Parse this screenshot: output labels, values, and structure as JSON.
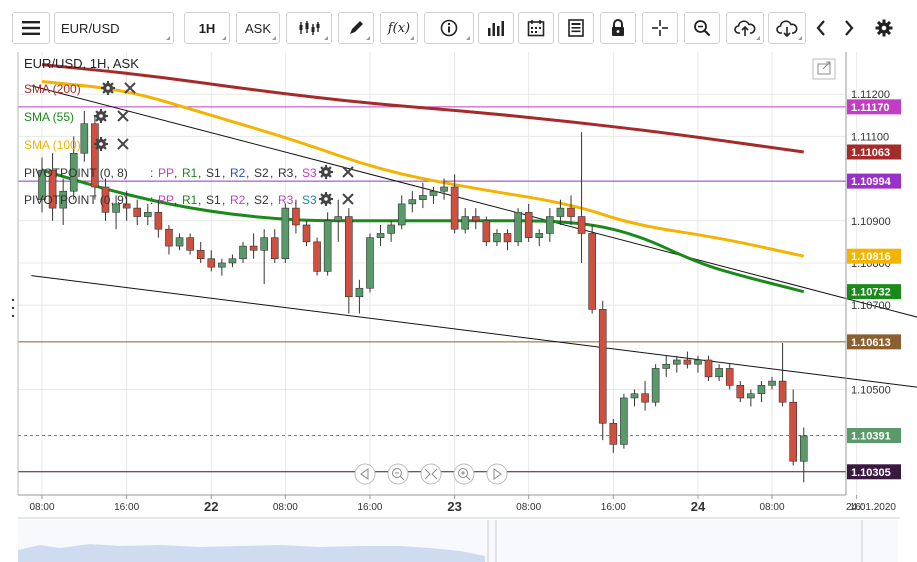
{
  "toolbar": {
    "symbol": "EUR/USD",
    "timeframe": "1H",
    "price_type": "ASK",
    "fx_label": "f(x)",
    "icons": [
      "menu-icon",
      "candles-icon",
      "pencil-icon",
      "function-icon",
      "info-icon",
      "bar-chart-icon",
      "calendar-icon",
      "sheet-icon",
      "lock-icon",
      "crosshair-icon",
      "zoom-icon",
      "cloud-upload-icon",
      "cloud-download-icon",
      "chevron-left-icon",
      "chevron-right-icon",
      "gear-icon"
    ]
  },
  "chart_title": "EUR/USD, 1H, ASK",
  "indicators": [
    {
      "label": "SMA (200)",
      "color": "#a52a2a"
    },
    {
      "label": "SMA (55)",
      "color": "#1a8a1a"
    },
    {
      "label": "SMA (100)",
      "color": "#f5b301"
    }
  ],
  "pivots": [
    {
      "label": "PIVOTPOINT (0, 8)",
      "items": [
        {
          "t": "PP",
          "c": "#c43cc4"
        },
        {
          "t": "R1",
          "c": "#1a8a1a"
        },
        {
          "t": "S1",
          "c": "#333333"
        },
        {
          "t": "R2",
          "c": "#2255cc"
        },
        {
          "t": "S2",
          "c": "#333333"
        },
        {
          "t": "R3",
          "c": "#333333"
        },
        {
          "t": "S3",
          "c": "#c43cc4"
        }
      ]
    },
    {
      "label": "PIVOTPOINT (0, 9)",
      "items": [
        {
          "t": "PP",
          "c": "#c43cc4"
        },
        {
          "t": "R1",
          "c": "#1a8a1a"
        },
        {
          "t": "S1",
          "c": "#333333"
        },
        {
          "t": "R2",
          "c": "#c43cc4"
        },
        {
          "t": "S2",
          "c": "#333333"
        },
        {
          "t": "R3",
          "c": "#c43cc4"
        },
        {
          "t": "S3",
          "c": "#1a8aa0"
        }
      ]
    }
  ],
  "colors": {
    "up": "#5a9a6a",
    "down": "#d05040",
    "grid": "#e8e8e8"
  },
  "chart_data": {
    "type": "candlestick",
    "symbol": "EUR/USD",
    "interval": "1H",
    "ylim": [
      1.1025,
      1.113
    ],
    "y_ticks": [
      "1.11200",
      "1.11100",
      "1.10900",
      "1.10800",
      "1.10700",
      "1.10500"
    ],
    "x_ticks": [
      {
        "label": "08:00",
        "i": 0,
        "bold": false
      },
      {
        "label": "16:00",
        "i": 8,
        "bold": false
      },
      {
        "label": "22",
        "i": 16,
        "bold": true
      },
      {
        "label": "08:00",
        "i": 23,
        "bold": false
      },
      {
        "label": "16:00",
        "i": 31,
        "bold": false
      },
      {
        "label": "23",
        "i": 39,
        "bold": true
      },
      {
        "label": "08:00",
        "i": 46,
        "bold": false
      },
      {
        "label": "16:00",
        "i": 54,
        "bold": false
      },
      {
        "label": "24",
        "i": 62,
        "bold": true
      },
      {
        "label": "08:00",
        "i": 69,
        "bold": false
      },
      {
        "label": "16:",
        "i": 77,
        "bold": false
      }
    ],
    "x_end_label": "24.01.2020",
    "price_tags": [
      {
        "label": "1.11170",
        "value": 1.1117,
        "color": "#c43cc4",
        "line": true
      },
      {
        "label": "1.11063",
        "value": 1.11063,
        "color": "#a52a2a",
        "line": false
      },
      {
        "label": "1.10994",
        "value": 1.10994,
        "color": "#9b30c8",
        "line": true
      },
      {
        "label": "1.10816",
        "value": 1.10816,
        "color": "#f5b301",
        "line": false
      },
      {
        "label": "1.10732",
        "value": 1.10732,
        "color": "#1a8a1a",
        "line": false
      },
      {
        "label": "1.10613",
        "value": 1.10613,
        "color": "#8a6030",
        "line": true
      },
      {
        "label": "1.10391",
        "value": 1.10391,
        "color": "#5a9a6a",
        "line": true,
        "dashed": true
      },
      {
        "label": "1.10305",
        "value": 1.10305,
        "color": "#3a1840",
        "line": true
      }
    ],
    "candles": [
      [
        1.1095,
        1.1105,
        1.1092,
        1.1102
      ],
      [
        1.1102,
        1.1106,
        1.109,
        1.1093
      ],
      [
        1.1093,
        1.11,
        1.1089,
        1.1097
      ],
      [
        1.1097,
        1.111,
        1.1095,
        1.1106
      ],
      [
        1.1106,
        1.1116,
        1.1104,
        1.1113
      ],
      [
        1.1113,
        1.1115,
        1.1095,
        1.1098
      ],
      [
        1.1098,
        1.11,
        1.109,
        1.1092
      ],
      [
        1.1092,
        1.1096,
        1.1088,
        1.1094
      ],
      [
        1.1094,
        1.1097,
        1.109,
        1.1093
      ],
      [
        1.1093,
        1.1095,
        1.1089,
        1.1091
      ],
      [
        1.1091,
        1.1094,
        1.1089,
        1.1092
      ],
      [
        1.1092,
        1.1095,
        1.1086,
        1.1088
      ],
      [
        1.1088,
        1.1089,
        1.1082,
        1.1084
      ],
      [
        1.1084,
        1.1087,
        1.1083,
        1.1086
      ],
      [
        1.1086,
        1.1087,
        1.1082,
        1.1083
      ],
      [
        1.1083,
        1.1085,
        1.108,
        1.1081
      ],
      [
        1.1081,
        1.1083,
        1.1078,
        1.1079
      ],
      [
        1.1079,
        1.1081,
        1.1077,
        1.108
      ],
      [
        1.108,
        1.1082,
        1.1079,
        1.1081
      ],
      [
        1.1081,
        1.1085,
        1.108,
        1.1084
      ],
      [
        1.1084,
        1.1087,
        1.1081,
        1.1083
      ],
      [
        1.1083,
        1.1088,
        1.1075,
        1.1086
      ],
      [
        1.1086,
        1.1088,
        1.108,
        1.1081
      ],
      [
        1.1081,
        1.1094,
        1.108,
        1.1093
      ],
      [
        1.1093,
        1.1095,
        1.1087,
        1.1089
      ],
      [
        1.1089,
        1.109,
        1.1084,
        1.1085
      ],
      [
        1.1085,
        1.1086,
        1.1077,
        1.1078
      ],
      [
        1.1078,
        1.1092,
        1.1077,
        1.109
      ],
      [
        1.109,
        1.1095,
        1.1085,
        1.1091
      ],
      [
        1.1091,
        1.1093,
        1.1068,
        1.1072
      ],
      [
        1.1072,
        1.1076,
        1.1068,
        1.1074
      ],
      [
        1.1074,
        1.1087,
        1.1073,
        1.1086
      ],
      [
        1.1086,
        1.1089,
        1.1084,
        1.1087
      ],
      [
        1.1087,
        1.109,
        1.1085,
        1.1089
      ],
      [
        1.1089,
        1.1096,
        1.1088,
        1.1094
      ],
      [
        1.1094,
        1.1097,
        1.1092,
        1.1095
      ],
      [
        1.1095,
        1.1099,
        1.1093,
        1.1096
      ],
      [
        1.1096,
        1.1098,
        1.1094,
        1.1097
      ],
      [
        1.1097,
        1.11,
        1.1095,
        1.1098
      ],
      [
        1.1098,
        1.1101,
        1.1087,
        1.1088
      ],
      [
        1.1088,
        1.1093,
        1.1087,
        1.1091
      ],
      [
        1.1091,
        1.1093,
        1.1088,
        1.109
      ],
      [
        1.109,
        1.1091,
        1.1084,
        1.1085
      ],
      [
        1.1085,
        1.1088,
        1.1084,
        1.1087
      ],
      [
        1.1087,
        1.1088,
        1.1083,
        1.1085
      ],
      [
        1.1085,
        1.1093,
        1.1084,
        1.1092
      ],
      [
        1.1092,
        1.1094,
        1.1085,
        1.1086
      ],
      [
        1.1086,
        1.1088,
        1.1084,
        1.1087
      ],
      [
        1.1087,
        1.1093,
        1.1085,
        1.1091
      ],
      [
        1.1091,
        1.1095,
        1.1089,
        1.1093
      ],
      [
        1.1093,
        1.1096,
        1.1089,
        1.1091
      ],
      [
        1.1091,
        1.1111,
        1.108,
        1.1087
      ],
      [
        1.1087,
        1.1089,
        1.1068,
        1.1069
      ],
      [
        1.1069,
        1.1071,
        1.1038,
        1.1042
      ],
      [
        1.1042,
        1.1043,
        1.1035,
        1.1037
      ],
      [
        1.1037,
        1.1049,
        1.1036,
        1.1048
      ],
      [
        1.1048,
        1.105,
        1.1046,
        1.1049
      ],
      [
        1.1049,
        1.1052,
        1.1045,
        1.1047
      ],
      [
        1.1047,
        1.1056,
        1.1046,
        1.1055
      ],
      [
        1.1055,
        1.1058,
        1.1053,
        1.1056
      ],
      [
        1.1056,
        1.1058,
        1.1054,
        1.1057
      ],
      [
        1.1057,
        1.1059,
        1.1055,
        1.1056
      ],
      [
        1.1056,
        1.1058,
        1.1054,
        1.1057
      ],
      [
        1.1057,
        1.1058,
        1.1052,
        1.1053
      ],
      [
        1.1053,
        1.1056,
        1.1052,
        1.1055
      ],
      [
        1.1055,
        1.1056,
        1.105,
        1.1051
      ],
      [
        1.1051,
        1.1052,
        1.1047,
        1.1048
      ],
      [
        1.1048,
        1.105,
        1.1046,
        1.1049
      ],
      [
        1.1049,
        1.1052,
        1.1047,
        1.1051
      ],
      [
        1.1051,
        1.1053,
        1.105,
        1.1052
      ],
      [
        1.1052,
        1.1061,
        1.1046,
        1.1047
      ],
      [
        1.1047,
        1.105,
        1.1032,
        1.1033
      ],
      [
        1.1033,
        1.1041,
        1.1028,
        1.1039
      ]
    ],
    "sma200": [
      [
        0,
        1.1127
      ],
      [
        10,
        1.11245
      ],
      [
        20,
        1.1121
      ],
      [
        30,
        1.1118
      ],
      [
        40,
        1.1116
      ],
      [
        50,
        1.11135
      ],
      [
        60,
        1.11105
      ],
      [
        72,
        1.11063
      ]
    ],
    "sma100": [
      [
        0,
        1.1123
      ],
      [
        8,
        1.1121
      ],
      [
        16,
        1.1115
      ],
      [
        24,
        1.1109
      ],
      [
        32,
        1.1102
      ],
      [
        40,
        1.1098
      ],
      [
        50,
        1.1094
      ],
      [
        56,
        1.1089
      ],
      [
        64,
        1.1086
      ],
      [
        72,
        1.10816
      ]
    ],
    "sma55": [
      [
        0,
        1.1102
      ],
      [
        8,
        1.1096
      ],
      [
        16,
        1.1092
      ],
      [
        24,
        1.109
      ],
      [
        32,
        1.109
      ],
      [
        40,
        1.109
      ],
      [
        50,
        1.109
      ],
      [
        56,
        1.1087
      ],
      [
        62,
        1.108
      ],
      [
        66,
        1.1077
      ],
      [
        72,
        1.10732
      ]
    ],
    "trendlines": [
      [
        [
          -1,
          1.1122
        ],
        [
          84.5,
          1.1066
        ]
      ],
      [
        [
          -1,
          1.1077
        ],
        [
          84.5,
          1.105
        ]
      ]
    ]
  }
}
